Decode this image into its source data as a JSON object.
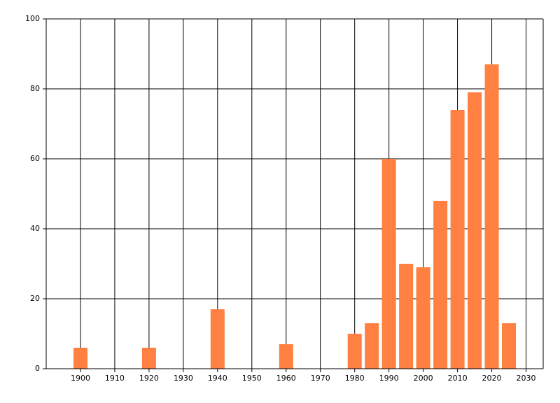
{
  "chart_data": {
    "type": "bar",
    "x": [
      1900,
      1920,
      1940,
      1960,
      1980,
      1985,
      1990,
      1995,
      2000,
      2005,
      2010,
      2015,
      2020,
      2025
    ],
    "values": [
      6,
      6,
      17,
      7,
      10,
      13,
      60,
      30,
      29,
      48,
      74,
      79,
      87,
      13
    ],
    "color": "#ff8040",
    "xlim": [
      1890,
      2035
    ],
    "xticks": [
      1900,
      1910,
      1920,
      1930,
      1940,
      1950,
      1960,
      1970,
      1980,
      1990,
      2000,
      2010,
      2020,
      2030
    ],
    "ylim": [
      0,
      100
    ],
    "yticks": [
      0,
      20,
      40,
      60,
      80,
      100
    ],
    "grid": true
  }
}
